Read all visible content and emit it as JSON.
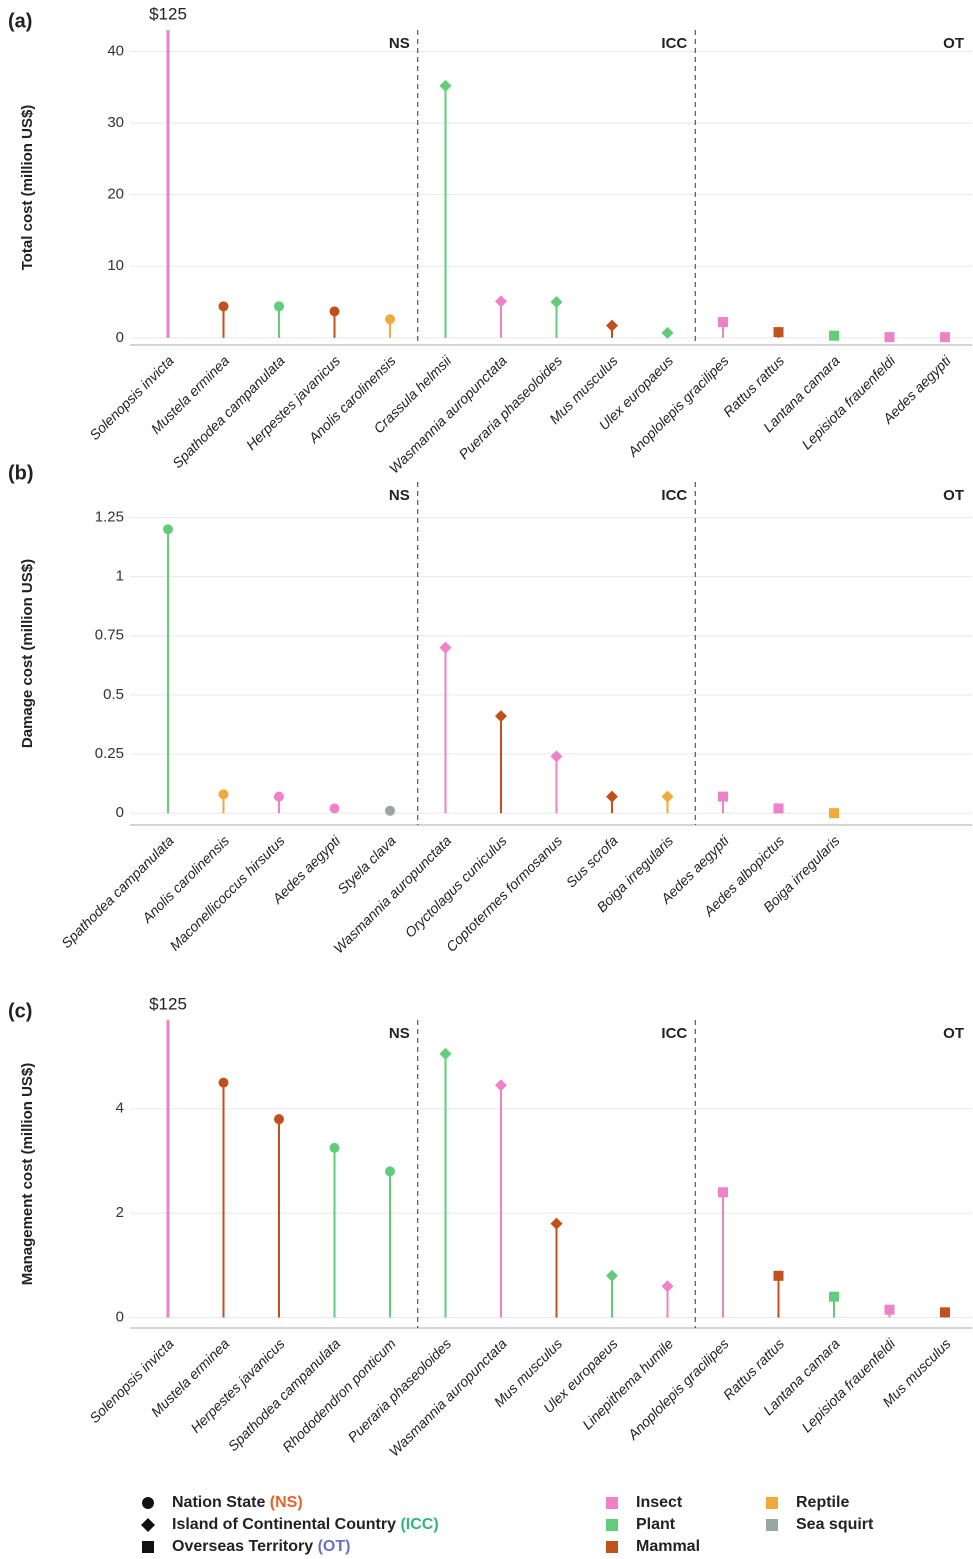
{
  "chart_data": [
    {
      "type": "lollipop",
      "label": "(a)",
      "y_label": "Total cost (million US$)",
      "categories": [
        "Solenopsis invicta",
        "Mustela erminea",
        "Spathodea campanulata",
        "Herpestes javanicus",
        "Anolis carolinensis",
        "Crassula helmsii",
        "Wasmannia auropunctata",
        "Pueraria phaseoloides",
        "Mus musculus",
        "Ulex europaeus",
        "Anoplolepis gracilipes",
        "Rattus rattus",
        "Lantana camara",
        "Lepisiota frauenfeldi",
        "Aedes aegypti"
      ],
      "values": [
        125,
        4.4,
        4.4,
        3.7,
        2.6,
        35.2,
        5.1,
        5.0,
        1.7,
        0.7,
        2.2,
        0.8,
        0.3,
        0.1,
        0.1
      ],
      "value_labels": [
        "$125",
        null,
        null,
        null,
        null,
        null,
        null,
        null,
        null,
        null,
        null,
        null,
        null,
        null,
        null
      ],
      "markers": [
        "circle",
        "circle",
        "circle",
        "circle",
        "circle",
        "diamond",
        "diamond",
        "diamond",
        "diamond",
        "diamond",
        "square",
        "square",
        "square",
        "square",
        "square"
      ],
      "colors": [
        "#ee82c8",
        "#c0501c",
        "#62cc7a",
        "#c0501c",
        "#f2a93b",
        "#62cc7a",
        "#ee82c8",
        "#62cc7a",
        "#c0501c",
        "#62cc7a",
        "#ee82c8",
        "#c0501c",
        "#62cc7a",
        "#ee82c8",
        "#ee82c8"
      ],
      "sections": [
        {
          "label": "NS",
          "color": "#e8632a"
        },
        {
          "label": "ICC",
          "color": "#33b37e"
        },
        {
          "label": "OT",
          "color": "#6870c4"
        }
      ],
      "ylim": [
        -1,
        43
      ],
      "yticks": [
        0,
        10,
        20,
        30,
        40
      ],
      "grid": true
    },
    {
      "type": "lollipop",
      "label": "(b)",
      "y_label": "Damage cost (million US$)",
      "categories": [
        "Spathodea campanulata",
        "Anolis carolinensis",
        "Maconellicoccus hirsutus",
        "Aedes aegypti",
        "Styela clava",
        "Wasmannia auropunctata",
        "Oryctolagus cuniculus",
        "Coptotermes formosanus",
        "Sus scrofa",
        "Boiga irregularis",
        "Aedes aegypti",
        "Aedes albopictus",
        "Boiga irregularis"
      ],
      "values": [
        1.2,
        0.08,
        0.07,
        0.02,
        0.01,
        0.7,
        0.41,
        0.24,
        0.07,
        0.07,
        0.07,
        0.02,
        0.0
      ],
      "markers": [
        "circle",
        "circle",
        "circle",
        "circle",
        "circle",
        "diamond",
        "diamond",
        "diamond",
        "diamond",
        "diamond",
        "square",
        "square",
        "square"
      ],
      "colors": [
        "#62cc7a",
        "#f2a93b",
        "#ee82c8",
        "#ee82c8",
        "#98a6a6",
        "#ee82c8",
        "#c0501c",
        "#ee82c8",
        "#c0501c",
        "#f2a93b",
        "#ee82c8",
        "#ee82c8",
        "#f2a93b"
      ],
      "sections": [
        {
          "label": "NS",
          "color": "#e8632a"
        },
        {
          "label": "ICC",
          "color": "#33b37e"
        },
        {
          "label": "OT",
          "color": "#6870c4"
        }
      ],
      "ylim": [
        -0.05,
        1.4
      ],
      "yticks": [
        0,
        0.25,
        0.5,
        0.75,
        1,
        1.25
      ],
      "grid": true
    },
    {
      "type": "lollipop",
      "label": "(c)",
      "y_label": "Management cost (million US$)",
      "categories": [
        "Solenopsis invicta",
        "Mustela erminea",
        "Herpestes javanicus",
        "Spathodea campanulata",
        "Rhododendron ponticum",
        "Pueraria phaseoloides",
        "Wasmannia auropunctata",
        "Mus musculus",
        "Ulex europaeus",
        "Linepithema humile",
        "Anoplolepis gracilipes",
        "Rattus rattus",
        "Lantana camara",
        "Lepisiota frauenfeldi",
        "Mus musculus"
      ],
      "values": [
        125,
        4.5,
        3.8,
        3.25,
        2.8,
        5.05,
        4.45,
        1.8,
        0.8,
        0.6,
        2.4,
        0.8,
        0.4,
        0.15,
        0.1
      ],
      "value_labels": [
        "$125",
        null,
        null,
        null,
        null,
        null,
        null,
        null,
        null,
        null,
        null,
        null,
        null,
        null,
        null
      ],
      "markers": [
        "circle",
        "circle",
        "circle",
        "circle",
        "circle",
        "diamond",
        "diamond",
        "diamond",
        "diamond",
        "diamond",
        "square",
        "square",
        "square",
        "square",
        "square"
      ],
      "colors": [
        "#ee82c8",
        "#c0501c",
        "#c0501c",
        "#62cc7a",
        "#62cc7a",
        "#62cc7a",
        "#ee82c8",
        "#c0501c",
        "#62cc7a",
        "#ee82c8",
        "#ee82c8",
        "#c0501c",
        "#62cc7a",
        "#ee82c8",
        "#c0501c"
      ],
      "sections": [
        {
          "label": "NS",
          "color": "#e8632a"
        },
        {
          "label": "ICC",
          "color": "#33b37e"
        },
        {
          "label": "OT",
          "color": "#6870c4"
        }
      ],
      "ylim": [
        -0.2,
        5.7
      ],
      "yticks": [
        0,
        2,
        4
      ],
      "grid": true
    }
  ],
  "legend": {
    "sites": [
      {
        "shape": "circle",
        "label": "Nation State",
        "abbr": "(NS)",
        "color": "#e8632a"
      },
      {
        "shape": "diamond",
        "label": "Island of Continental Country",
        "abbr": "(ICC)",
        "color": "#33b37e"
      },
      {
        "shape": "square",
        "label": "Overseas Territory",
        "abbr": "(OT)",
        "color": "#6870c4"
      }
    ],
    "taxa": [
      {
        "label": "Insect",
        "color": "#ee82c8"
      },
      {
        "label": "Plant",
        "color": "#62cc7a"
      },
      {
        "label": "Mammal",
        "color": "#c0501c"
      },
      {
        "label": "Reptile",
        "color": "#f2a93b"
      },
      {
        "label": "Sea squirt",
        "color": "#98a6a6"
      }
    ]
  }
}
